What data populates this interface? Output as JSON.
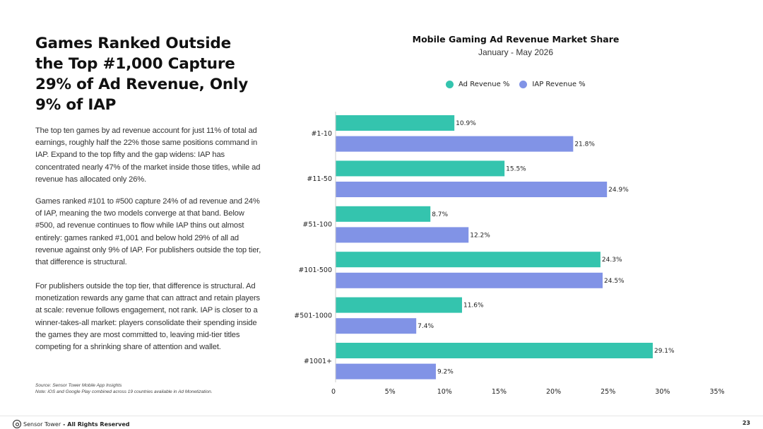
{
  "left_panel": {
    "headline": "Games Ranked Outside the Top #1,000 Capture 29% of Ad Revenue, Only 9% of IAP",
    "paragraphs": [
      "The top ten games by ad revenue account for just 11% of total ad earnings, roughly half the 22% those same positions command in IAP. Expand to the top fifty and the gap widens: IAP has concentrated nearly 47% of the market inside those titles, while ad revenue has allocated only 26%.",
      "Games ranked #101 to #500 capture 24% of ad revenue and 24% of IAP, meaning the two models converge at that band. Below #500, ad revenue continues to flow while IAP thins out almost entirely: games ranked #1,001 and below hold 29% of all ad revenue against only 9% of IAP. For publishers outside the top tier, that difference is structural.",
      "For publishers outside the top tier, that difference is structural. Ad monetization rewards any game that can attract and retain players at scale: revenue follows engagement, not rank. IAP is closer to a winner-takes-all market: players consolidate their spending inside the games they are most committed to, leaving mid-tier titles competing for a shrinking share of attention and wallet."
    ],
    "source": "Source: Sensor Tower Mobile App Insights",
    "note": "Note: iOS and Google Play combined across 19 countries available in Ad Monetization."
  },
  "footer": {
    "brand": "Sensor Tower",
    "rights": "- All Rights Reserved",
    "page": "23"
  },
  "colors": {
    "ad": "#34c4ae",
    "iap": "#8193e6"
  },
  "chart_data": {
    "type": "bar",
    "orientation": "horizontal",
    "title": "Mobile Gaming Ad Revenue Market Share",
    "subtitle": "January - May 2026",
    "categories": [
      "#1-10",
      "#11-50",
      "#51-100",
      "#101-500",
      "#501-1000",
      "#1001+"
    ],
    "series": [
      {
        "name": "Ad Revenue %",
        "values": [
          10.9,
          15.5,
          8.7,
          24.3,
          11.6,
          29.1
        ]
      },
      {
        "name": "IAP Revenue %",
        "values": [
          21.8,
          24.9,
          12.2,
          24.5,
          7.4,
          9.2
        ]
      }
    ],
    "xlim": [
      0,
      35
    ],
    "xticks": [
      "0",
      "5%",
      "10%",
      "15%",
      "20%",
      "25%",
      "30%",
      "35%"
    ],
    "legend_position": "top",
    "grid": false
  }
}
